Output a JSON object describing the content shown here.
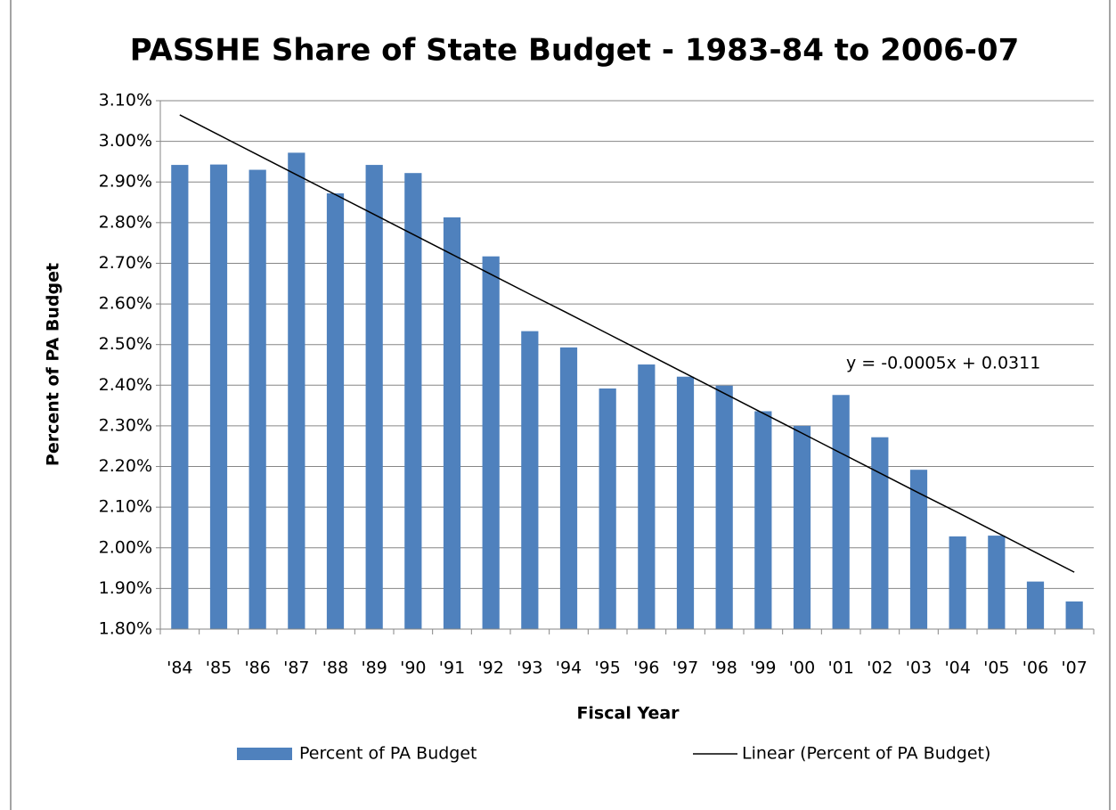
{
  "chart_data": {
    "type": "bar",
    "title": "PASSHE Share of State Budget - 1983-84 to 2006-07",
    "x_label": "Fiscal Year",
    "y_label": "Percent of PA Budget",
    "categories": [
      "'84",
      "'85",
      "'86",
      "'87",
      "'88",
      "'89",
      "'90",
      "'91",
      "'92",
      "'93",
      "'94",
      "'95",
      "'96",
      "'97",
      "'98",
      "'99",
      "'00",
      "'01",
      "'02",
      "'03",
      "'04",
      "'05",
      "'06",
      "'07"
    ],
    "series": [
      {
        "name": "Percent of PA Budget",
        "color": "#4f81bd",
        "type": "bar",
        "values": [
          2.942,
          2.943,
          2.93,
          2.972,
          2.872,
          2.942,
          2.922,
          2.813,
          2.717,
          2.533,
          2.493,
          2.392,
          2.451,
          2.421,
          2.399,
          2.336,
          2.3,
          2.376,
          2.272,
          2.192,
          2.028,
          2.03,
          1.917,
          1.868
        ]
      },
      {
        "name": "Linear (Percent of PA Budget)",
        "color": "#000000",
        "type": "line",
        "values": [
          3.065,
          3.016,
          2.967,
          2.918,
          2.869,
          2.82,
          2.771,
          2.722,
          2.673,
          2.624,
          2.576,
          2.527,
          2.478,
          2.429,
          2.38,
          2.331,
          2.282,
          2.233,
          2.184,
          2.135,
          2.087,
          2.038,
          1.989,
          1.94
        ]
      }
    ],
    "annotation": "y = -0.0005x + 0.0311",
    "ylim": [
      1.8,
      3.1
    ],
    "yticks": [
      {
        "value": 1.8,
        "label": "1.80%"
      },
      {
        "value": 1.9,
        "label": "1.90%"
      },
      {
        "value": 2.0,
        "label": "2.00%"
      },
      {
        "value": 2.1,
        "label": "2.10%"
      },
      {
        "value": 2.2,
        "label": "2.20%"
      },
      {
        "value": 2.3,
        "label": "2.30%"
      },
      {
        "value": 2.4,
        "label": "2.40%"
      },
      {
        "value": 2.5,
        "label": "2.50%"
      },
      {
        "value": 2.6,
        "label": "2.60%"
      },
      {
        "value": 2.7,
        "label": "2.70%"
      },
      {
        "value": 2.8,
        "label": "2.80%"
      },
      {
        "value": 2.9,
        "label": "2.90%"
      },
      {
        "value": 3.0,
        "label": "3.00%"
      },
      {
        "value": 3.1,
        "label": "3.10%"
      }
    ],
    "grid": true,
    "legend": "bottom"
  }
}
